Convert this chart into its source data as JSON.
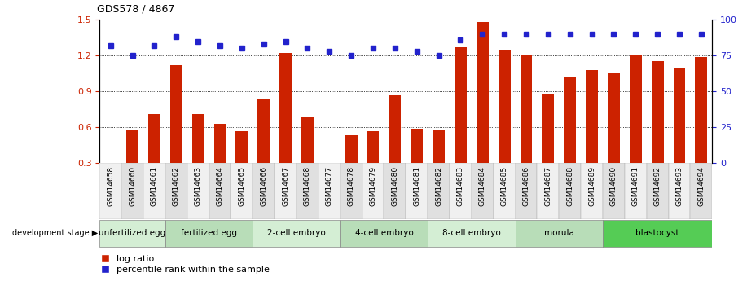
{
  "title": "GDS578 / 4867",
  "samples": [
    "GSM14658",
    "GSM14660",
    "GSM14661",
    "GSM14662",
    "GSM14663",
    "GSM14664",
    "GSM14665",
    "GSM14666",
    "GSM14667",
    "GSM14668",
    "GSM14677",
    "GSM14678",
    "GSM14679",
    "GSM14680",
    "GSM14681",
    "GSM14682",
    "GSM14683",
    "GSM14684",
    "GSM14685",
    "GSM14686",
    "GSM14687",
    "GSM14688",
    "GSM14689",
    "GSM14690",
    "GSM14691",
    "GSM14692",
    "GSM14693",
    "GSM14694"
  ],
  "log_ratio": [
    0.3,
    0.58,
    0.71,
    1.12,
    0.71,
    0.63,
    0.57,
    0.83,
    1.22,
    0.68,
    0.3,
    0.53,
    0.57,
    0.87,
    0.59,
    0.58,
    1.27,
    1.48,
    1.25,
    1.2,
    0.88,
    1.02,
    1.08,
    1.05,
    1.2,
    1.15,
    1.1,
    1.19
  ],
  "percentile_rank": [
    82,
    75,
    82,
    88,
    85,
    82,
    80,
    83,
    85,
    80,
    78,
    75,
    80,
    80,
    78,
    75,
    86,
    90,
    90,
    90,
    90,
    90,
    90,
    90,
    90,
    90,
    90,
    90
  ],
  "stages": [
    {
      "label": "unfertilized egg",
      "start": 0,
      "end": 3
    },
    {
      "label": "fertilized egg",
      "start": 3,
      "end": 7
    },
    {
      "label": "2-cell embryo",
      "start": 7,
      "end": 11
    },
    {
      "label": "4-cell embryo",
      "start": 11,
      "end": 15
    },
    {
      "label": "8-cell embryo",
      "start": 15,
      "end": 19
    },
    {
      "label": "morula",
      "start": 19,
      "end": 23
    },
    {
      "label": "blastocyst",
      "start": 23,
      "end": 28
    }
  ],
  "stage_colors": [
    "#d4eed4",
    "#b8ddb8",
    "#d4eed4",
    "#b8ddb8",
    "#d4eed4",
    "#b8ddb8",
    "#55cc55"
  ],
  "bar_color": "#cc2200",
  "dot_color": "#2222cc",
  "ylim": [
    0.3,
    1.5
  ],
  "y2lim": [
    0,
    100
  ],
  "yticks": [
    0.3,
    0.6,
    0.9,
    1.2,
    1.5
  ],
  "y2ticks": [
    0,
    25,
    50,
    75,
    100
  ],
  "grid_lines": [
    0.6,
    0.9,
    1.2
  ],
  "ylabel_color_left": "#cc2200",
  "ylabel_color_right": "#2222cc",
  "title_fontsize": 9
}
